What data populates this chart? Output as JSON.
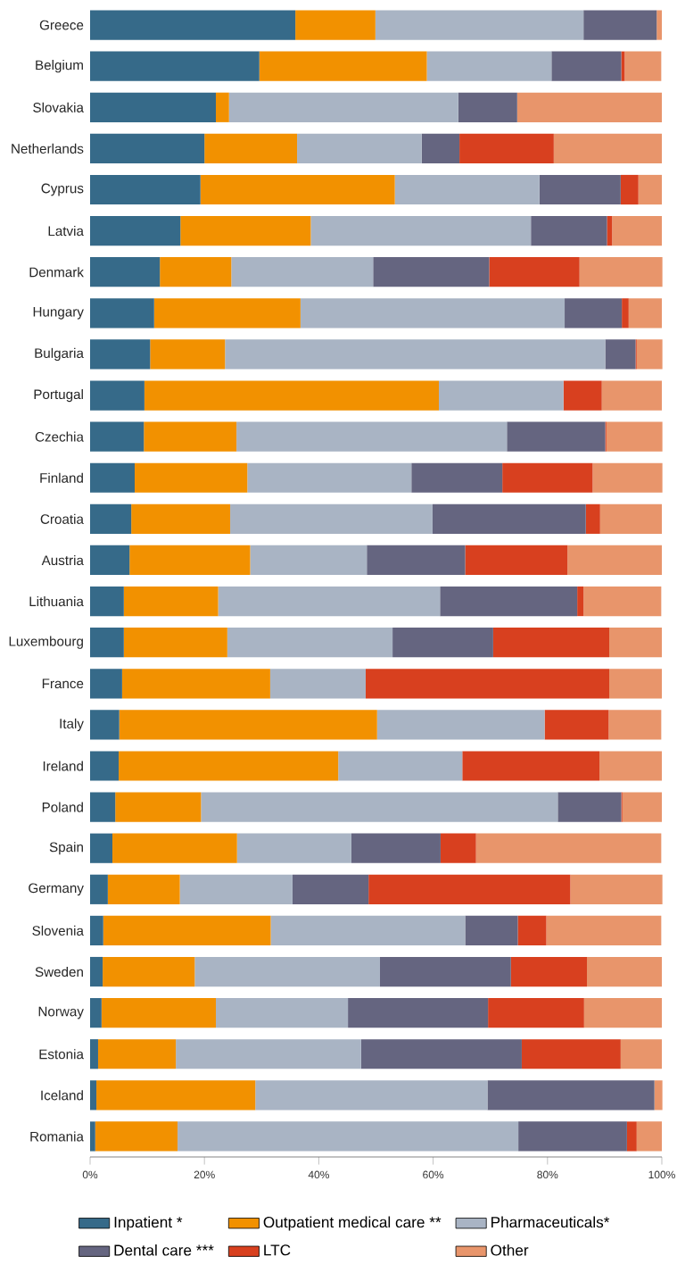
{
  "chart_data": {
    "type": "bar",
    "orientation": "horizontal",
    "stacked": true,
    "legend": "bottom",
    "grid": false,
    "categories": [
      "Greece",
      "Belgium",
      "Slovakia",
      "Netherlands",
      "Cyprus",
      "Latvia",
      "Denmark",
      "Hungary",
      "Bulgaria",
      "Portugal",
      "Czechia",
      "Finland",
      "Croatia",
      "Austria",
      "Lithuania",
      "Luxembourg",
      "France",
      "Italy",
      "Ireland",
      "Poland",
      "Spain",
      "Germany",
      "Slovenia",
      "Sweden",
      "Norway",
      "Estonia",
      "Iceland",
      "Romania"
    ],
    "xlim": [
      0,
      100
    ],
    "xticks": [
      {
        "value": 0,
        "label": "0%"
      },
      {
        "value": 20,
        "label": "20%"
      },
      {
        "value": 40,
        "label": "40%"
      },
      {
        "value": 60,
        "label": "60%"
      },
      {
        "value": 80,
        "label": "80%"
      },
      {
        "value": 100,
        "label": "100%"
      }
    ],
    "series": [
      {
        "name": "Inpatient *",
        "color": "#366a89",
        "values": [
          35.9,
          29.6,
          22.0,
          20.0,
          19.3,
          15.8,
          12.2,
          11.2,
          10.5,
          9.5,
          9.4,
          7.8,
          7.2,
          6.9,
          5.9,
          5.9,
          5.6,
          5.1,
          5.0,
          4.4,
          3.9,
          3.1,
          2.3,
          2.2,
          2.0,
          1.4,
          1.1,
          0.9
        ]
      },
      {
        "name": "Outpatient medical care **",
        "color": "#f29100",
        "values": [
          14.0,
          29.3,
          2.3,
          16.2,
          34.0,
          22.8,
          12.5,
          25.6,
          13.1,
          51.5,
          16.2,
          19.7,
          17.3,
          21.1,
          16.5,
          18.1,
          25.9,
          45.1,
          38.4,
          15.0,
          21.8,
          12.6,
          29.3,
          16.1,
          20.0,
          13.6,
          27.8,
          14.4
        ]
      },
      {
        "name": "Pharmaceuticals*",
        "color": "#a9b4c4",
        "values": [
          36.4,
          21.8,
          40.1,
          21.8,
          25.3,
          38.5,
          24.8,
          46.2,
          66.5,
          21.8,
          47.3,
          28.7,
          35.4,
          20.4,
          38.8,
          28.9,
          16.7,
          29.3,
          21.7,
          62.4,
          20.0,
          19.7,
          34.0,
          32.4,
          23.1,
          32.4,
          40.6,
          59.6
        ]
      },
      {
        "name": "Dental care ***",
        "color": "#656580",
        "values": [
          12.8,
          12.2,
          10.3,
          6.6,
          14.2,
          13.3,
          20.3,
          10.0,
          5.3,
          0,
          17.2,
          15.9,
          26.8,
          17.2,
          24.0,
          17.6,
          0,
          0,
          0,
          11.1,
          15.6,
          13.3,
          9.2,
          22.9,
          24.5,
          28.1,
          29.2,
          19.0
        ]
      },
      {
        "name": "LTC",
        "color": "#d8401f",
        "values": [
          0,
          0.6,
          0,
          16.5,
          3.1,
          0.9,
          15.8,
          1.2,
          0.2,
          6.7,
          0.2,
          15.8,
          2.5,
          17.9,
          1.1,
          20.3,
          42.6,
          11.2,
          24.0,
          0.2,
          6.2,
          35.3,
          5.0,
          13.3,
          16.8,
          17.3,
          0,
          1.7
        ]
      },
      {
        "name": "Other",
        "color": "#e8956b",
        "values": [
          0.9,
          6.4,
          25.3,
          18.9,
          4.1,
          8.7,
          14.5,
          5.8,
          4.5,
          10.5,
          9.8,
          12.2,
          10.8,
          16.5,
          13.6,
          9.2,
          9.2,
          9.2,
          10.9,
          6.9,
          32.4,
          16.1,
          20.1,
          13.1,
          13.6,
          7.2,
          1.4,
          4.4
        ]
      }
    ]
  }
}
